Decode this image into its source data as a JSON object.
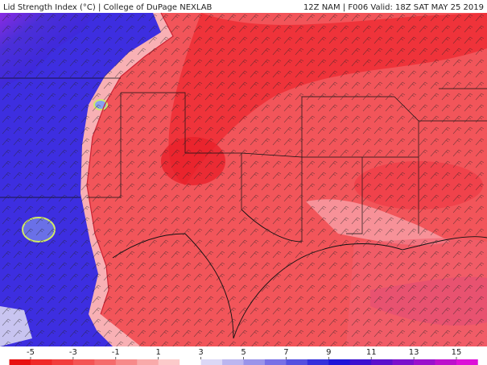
{
  "header": {
    "left": "Lid Strength Index (°C) | College of DuPage NEXLAB",
    "right": "12Z NAM | F006 Valid: 18Z SAT MAY 25 2019"
  },
  "colorbar": {
    "ticks": [
      -5,
      -3,
      -1,
      1,
      3,
      5,
      7,
      9,
      11,
      13,
      15
    ]
  }
}
